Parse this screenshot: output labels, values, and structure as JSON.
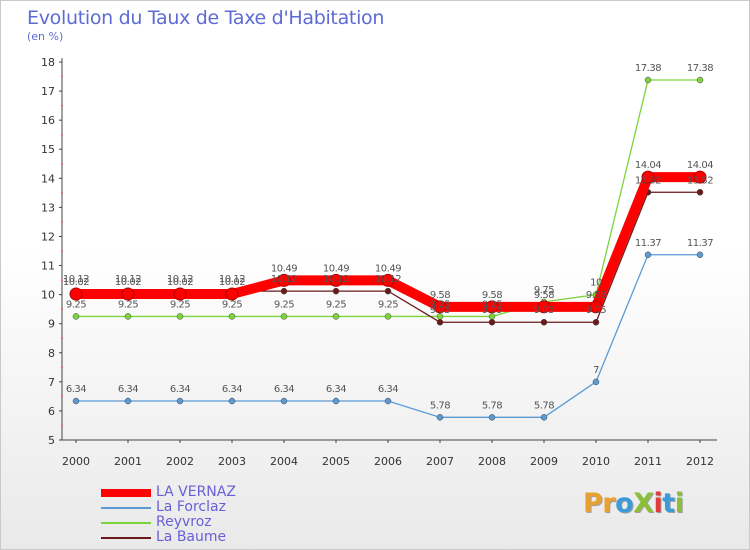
{
  "header": {
    "title": "Evolution du Taux de Taxe d'Habitation",
    "unit": "(en %)"
  },
  "logo": {
    "text": "ProXiti",
    "letter_colors": [
      "#e8a130",
      "#e8a130",
      "#3b9ad8",
      "#8bbf3a",
      "#e03a3a",
      "#3b9ad8",
      "#8bbf3a"
    ]
  },
  "chart_data": {
    "type": "line",
    "title": "Evolution du Taux de Taxe d'Habitation",
    "ylabel": "(en %)",
    "xlabel": "",
    "x": [
      "2000",
      "2001",
      "2002",
      "2003",
      "2004",
      "2005",
      "2006",
      "2007",
      "2008",
      "2009",
      "2010",
      "2011",
      "2012"
    ],
    "ylim": [
      5,
      18
    ],
    "yticks": [
      5,
      6,
      7,
      8,
      9,
      10,
      11,
      12,
      13,
      14,
      15,
      16,
      17,
      18
    ],
    "grid": false,
    "legend": "bottom-left",
    "series": [
      {
        "name": "LA VERNAZ",
        "color": "#ff0000",
        "values": [
          10.02,
          10.02,
          10.02,
          10.02,
          10.49,
          10.49,
          10.49,
          9.58,
          9.58,
          9.58,
          9.58,
          14.04,
          14.04
        ]
      },
      {
        "name": "La Forclaz",
        "color": "#5b9bd5",
        "values": [
          6.34,
          6.34,
          6.34,
          6.34,
          6.34,
          6.34,
          6.34,
          5.78,
          5.78,
          5.78,
          7,
          11.37,
          11.37
        ]
      },
      {
        "name": "Reyvroz",
        "color": "#7cd33a",
        "values": [
          9.25,
          9.25,
          9.25,
          9.25,
          9.25,
          9.25,
          9.25,
          9.25,
          9.25,
          9.75,
          10,
          17.38,
          17.38
        ]
      },
      {
        "name": "La Baume",
        "color": "#6b1a1a",
        "values": [
          10.12,
          10.12,
          10.12,
          10.12,
          10.12,
          10.12,
          10.12,
          9.05,
          9.05,
          9.05,
          9.05,
          13.52,
          13.52
        ]
      }
    ],
    "data_labels": [
      {
        "series": 0,
        "labels": [
          "10.02",
          "10.02",
          "10.02",
          "10.02",
          "10.49",
          "10.49",
          "10.49",
          "9.58",
          "9.58",
          "9.58",
          "9.58",
          "14.04",
          "14.04"
        ]
      },
      {
        "series": 1,
        "labels": [
          "6.34",
          "6.34",
          "6.34",
          "6.34",
          "6.34",
          "6.34",
          "6.34",
          "5.78",
          "5.78",
          "5.78",
          "7",
          "11.37",
          "11.37"
        ]
      },
      {
        "series": 2,
        "labels": [
          "9.25",
          "9.25",
          "9.25",
          "9.25",
          "9.25",
          "9.25",
          "9.25",
          "9.25",
          "9.25",
          "9.75",
          "10",
          "17.38",
          "17.38"
        ]
      },
      {
        "series": 3,
        "labels": [
          "10.12",
          "10.12",
          "10.12",
          "10.12",
          "10.12",
          "10.12",
          "10.12",
          "9.05",
          "9.05",
          "9.05",
          "9.05",
          "13.52",
          "13.52"
        ]
      }
    ]
  }
}
